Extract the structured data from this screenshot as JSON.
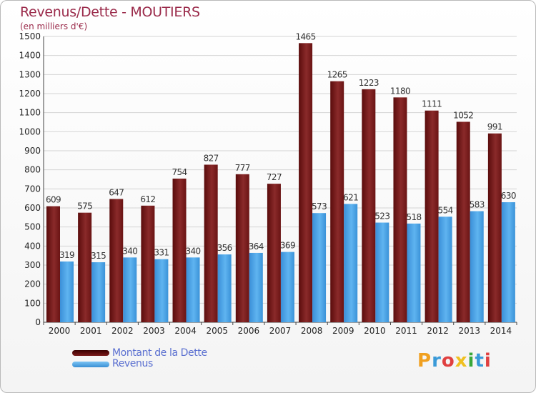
{
  "chart_data": {
    "type": "bar",
    "title": "Revenus/Dette - MOUTIERS",
    "subtitle": "(en milliers d'€)",
    "categories": [
      "2000",
      "2001",
      "2002",
      "2003",
      "2004",
      "2005",
      "2006",
      "2007",
      "2008",
      "2009",
      "2010",
      "2011",
      "2012",
      "2013",
      "2014"
    ],
    "series": [
      {
        "name": "Montant de la Dette",
        "values": [
          609,
          575,
          647,
          612,
          754,
          827,
          777,
          727,
          1465,
          1265,
          1223,
          1180,
          1111,
          1052,
          991
        ],
        "color": "#7a1a1a"
      },
      {
        "name": "Revenus",
        "values": [
          319,
          315,
          340,
          331,
          340,
          356,
          364,
          369,
          573,
          621,
          523,
          518,
          554,
          583,
          630
        ],
        "color": "#4aa3e8"
      }
    ],
    "ylim": [
      0,
      1500
    ],
    "yticks": [
      0,
      100,
      200,
      300,
      400,
      500,
      600,
      700,
      800,
      900,
      1000,
      1100,
      1200,
      1300,
      1400,
      1500
    ],
    "grid": true,
    "legend_position": "bottom-left"
  },
  "logo": {
    "text": "Proxiti",
    "colors": [
      "#f0a020",
      "#3a9ad8",
      "#e04040",
      "#f0c020",
      "#3aa83a",
      "#3a9ad8",
      "#e04040"
    ]
  }
}
